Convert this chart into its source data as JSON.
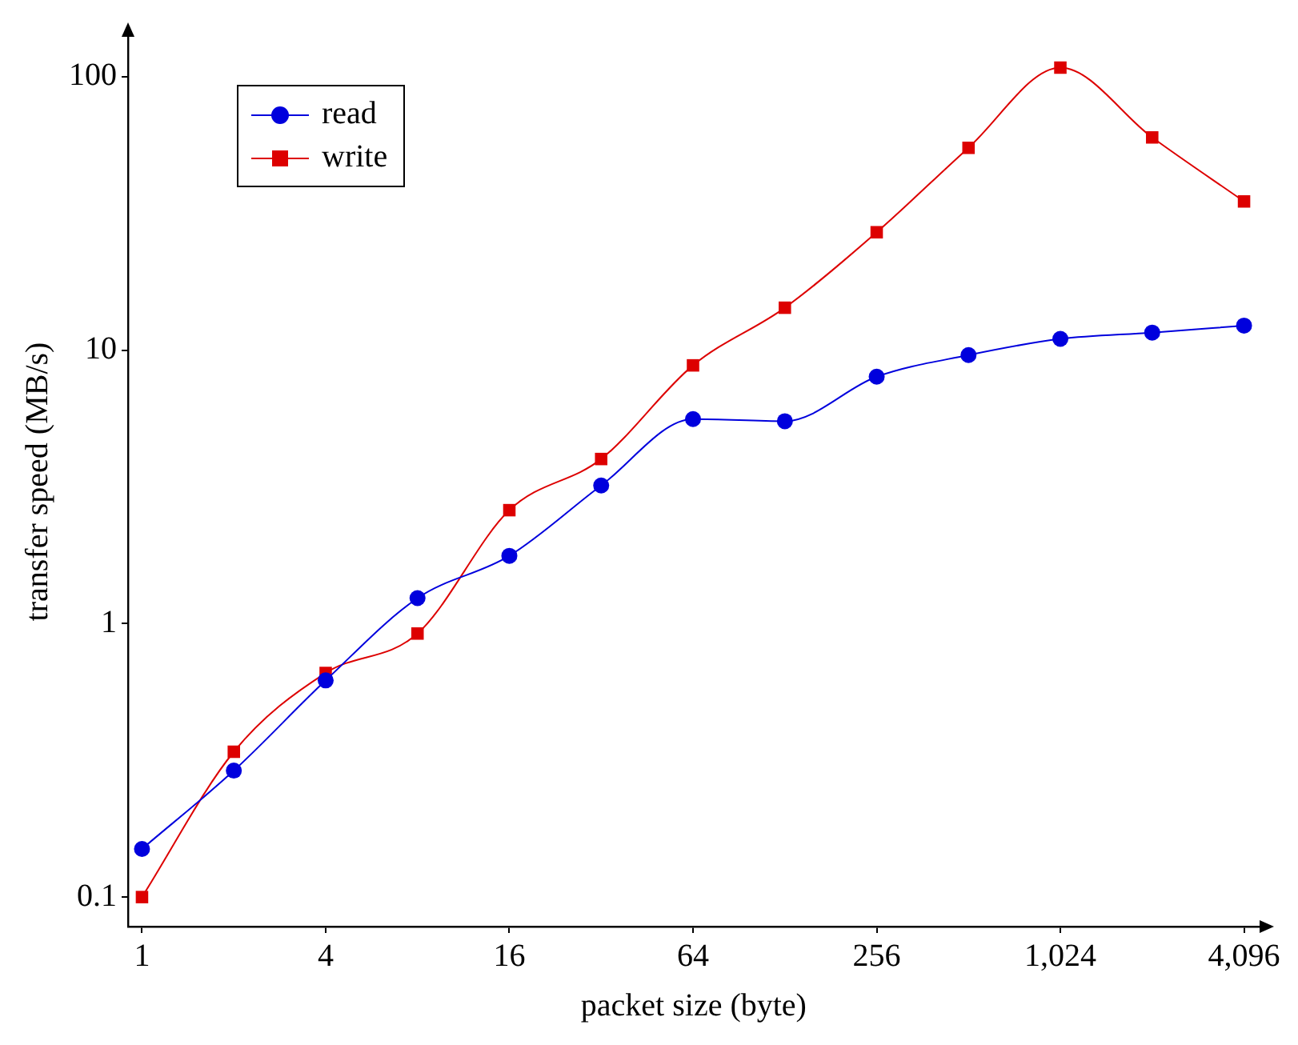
{
  "chart_data": {
    "type": "line",
    "xlabel": "packet size (byte)",
    "ylabel": "transfer speed (MB/s)",
    "x": [
      1,
      2,
      4,
      8,
      16,
      32,
      64,
      128,
      256,
      512,
      1024,
      2048,
      4096
    ],
    "series": [
      {
        "name": "read",
        "color": "#0000dd",
        "marker": "circle",
        "values": [
          0.15,
          0.29,
          0.62,
          1.24,
          1.77,
          3.2,
          5.6,
          5.5,
          8.0,
          9.6,
          11,
          11.6,
          12.3
        ]
      },
      {
        "name": "write",
        "color": "#dd0000",
        "marker": "square",
        "values": [
          0.1,
          0.34,
          0.66,
          0.92,
          2.6,
          4.0,
          8.8,
          14.3,
          27,
          55,
          108,
          60,
          35
        ]
      }
    ],
    "log": "xy",
    "xlim": [
      0.9,
      4600
    ],
    "ylim": [
      0.078,
      140
    ],
    "xticks": [
      1,
      4,
      16,
      64,
      256,
      {
        "value": 1024,
        "label": "1,024"
      },
      {
        "value": 4096,
        "label": "4,096"
      }
    ],
    "yticks": [
      0.1,
      1,
      10,
      100
    ],
    "legend": "top left",
    "grid": false
  }
}
